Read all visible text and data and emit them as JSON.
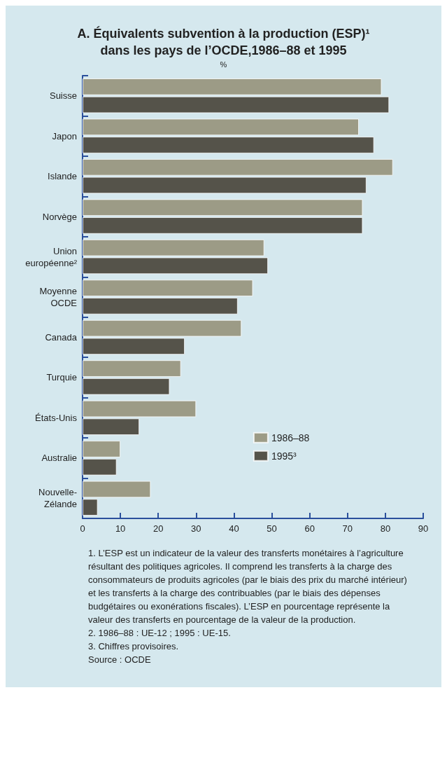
{
  "chart_data": {
    "type": "bar",
    "orientation": "horizontal",
    "title": "A. Équivalents subvention à la production (ESP)¹ dans les pays de l’OCDE,1986–88 et 1995",
    "subtitle": "%",
    "categories": [
      "Suisse",
      "Japon",
      "Islande",
      "Norvège",
      "Union européenne²",
      "Moyenne OCDE",
      "Canada",
      "Turquie",
      "États-Unis",
      "Australie",
      "Nouvelle-Zélande"
    ],
    "series": [
      {
        "name": "1986–88",
        "color": "#9c9b86",
        "values": [
          79,
          73,
          82,
          74,
          48,
          45,
          42,
          26,
          30,
          10,
          18
        ]
      },
      {
        "name": "1995³",
        "color": "#55534a",
        "values": [
          81,
          77,
          75,
          74,
          49,
          41,
          27,
          23,
          15,
          9,
          4
        ]
      }
    ],
    "xlim": [
      0,
      90
    ],
    "xticks": [
      0,
      10,
      20,
      30,
      40,
      50,
      60,
      70,
      80,
      90
    ],
    "grid": false,
    "legend": "right",
    "annotations": [
      "1. L’ESP est un indicateur de la valeur des transferts monétaires à l’agriculture résultant des politiques agricoles. Il comprend les transferts à la charge des consommateurs de produits agricoles (par le biais des prix du marché intérieur) et les transferts à la charge des contribuables (par le biais des dépenses budgétaires ou exonérations fiscales). L’ESP en pourcentage représente la valeur des transferts en pourcentage de la valeur de la production.",
      "2. 1986–88 : UE-12 ; 1995 : UE-15.",
      "3. Chiffres provisoires.",
      "Source : OCDE"
    ]
  }
}
